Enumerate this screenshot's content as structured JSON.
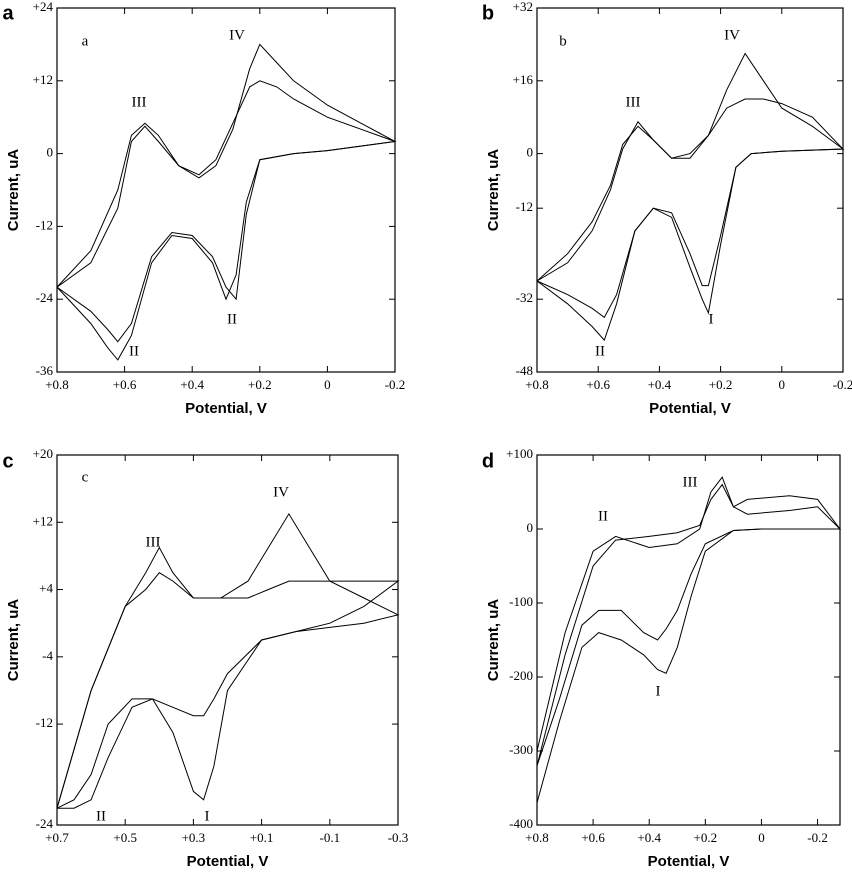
{
  "chart_data": [
    {
      "type": "line",
      "panel_label": "a",
      "inner_label": "a",
      "xlabel": "Potential, V",
      "ylabel": "Current, uA",
      "xlim": [
        0.8,
        -0.2
      ],
      "xticks": [
        {
          "value": 0.8,
          "label": "+0.8"
        },
        {
          "value": 0.6,
          "label": "+0.6"
        },
        {
          "value": 0.4,
          "label": "+0.4"
        },
        {
          "value": 0.2,
          "label": "+0.2"
        },
        0,
        -0.2
      ],
      "ylim": [
        -36,
        24
      ],
      "yticks": [
        -36,
        -24,
        -12,
        0,
        {
          "value": 12,
          "label": "+12"
        },
        {
          "value": 24,
          "label": "+24"
        }
      ],
      "annotations": [
        "III",
        "IV",
        "II",
        "II"
      ],
      "series": [
        {
          "color": "#000000",
          "x": [
            0.8,
            0.7,
            0.65,
            0.62,
            0.58,
            0.52,
            0.46,
            0.4,
            0.34,
            0.3,
            0.27,
            0.24,
            0.2,
            0.1,
            0,
            -0.2,
            -0.1,
            0,
            0.1,
            0.15,
            0.2,
            0.23,
            0.28,
            0.33,
            0.38,
            0.44,
            0.5,
            0.54,
            0.58,
            0.62,
            0.7,
            0.8
          ],
          "values": [
            -22,
            -28,
            -32,
            -34,
            -30,
            -18,
            -13.5,
            -14,
            -18,
            -24,
            -20,
            -8,
            -1,
            0,
            0.5,
            2,
            5,
            8,
            12,
            15,
            18,
            14,
            4,
            -2,
            -4,
            -2,
            3,
            5,
            3,
            -6,
            -16,
            -22
          ]
        },
        {
          "color": "#000000",
          "x": [
            0.8,
            0.7,
            0.65,
            0.62,
            0.58,
            0.52,
            0.46,
            0.4,
            0.34,
            0.3,
            0.27,
            0.24,
            0.2,
            0.1,
            0,
            -0.2,
            -0.1,
            0,
            0.1,
            0.15,
            0.2,
            0.23,
            0.28,
            0.33,
            0.38,
            0.44,
            0.5,
            0.54,
            0.58,
            0.62,
            0.7,
            0.8
          ],
          "values": [
            -22,
            -26,
            -29,
            -31,
            -28,
            -17,
            -13,
            -13.5,
            -17,
            -22,
            -24,
            -10,
            -1,
            0,
            0.5,
            2,
            4,
            6,
            9,
            11,
            12,
            11,
            5,
            -1,
            -3.5,
            -2,
            2,
            4.5,
            2,
            -9,
            -18,
            -22
          ]
        }
      ]
    },
    {
      "type": "line",
      "panel_label": "b",
      "inner_label": "b",
      "xlabel": "Potential, V",
      "ylabel": "Current, uA",
      "xlim": [
        0.8,
        -0.2
      ],
      "xticks": [
        {
          "value": 0.8,
          "label": "+0.8"
        },
        {
          "value": 0.6,
          "label": "+0.6"
        },
        {
          "value": 0.4,
          "label": "+0.4"
        },
        {
          "value": 0.2,
          "label": "+0.2"
        },
        0,
        -0.2
      ],
      "ylim": [
        -48,
        32
      ],
      "yticks": [
        -48,
        -32,
        -12,
        0,
        {
          "value": 16,
          "label": "+16"
        },
        {
          "value": 32,
          "label": "+32"
        }
      ],
      "annotations": [
        "III",
        "IV",
        "I",
        "II"
      ],
      "series": [
        {
          "color": "#000000",
          "x": [
            0.8,
            0.7,
            0.62,
            0.58,
            0.54,
            0.48,
            0.42,
            0.36,
            0.3,
            0.26,
            0.24,
            0.2,
            0.15,
            0.1,
            0,
            -0.2,
            -0.1,
            0,
            0.06,
            0.12,
            0.18,
            0.24,
            0.3,
            0.36,
            0.42,
            0.47,
            0.52,
            0.56,
            0.62,
            0.7,
            0.8
          ],
          "values": [
            -28,
            -33,
            -38,
            -41,
            -33,
            -17,
            -12,
            -14,
            -25,
            -32,
            -35,
            -20,
            -3,
            0,
            0.5,
            1,
            6,
            10,
            16,
            22,
            14,
            4,
            -1,
            -1,
            3,
            7,
            1,
            -8,
            -17,
            -24,
            -28
          ]
        },
        {
          "color": "#000000",
          "x": [
            0.8,
            0.7,
            0.62,
            0.58,
            0.54,
            0.48,
            0.42,
            0.36,
            0.3,
            0.26,
            0.24,
            0.2,
            0.15,
            0.1,
            0,
            -0.2,
            -0.1,
            0,
            0.06,
            0.12,
            0.18,
            0.24,
            0.3,
            0.36,
            0.42,
            0.47,
            0.52,
            0.56,
            0.62,
            0.7,
            0.8
          ],
          "values": [
            -28,
            -31,
            -34,
            -36,
            -31,
            -17,
            -12,
            -13,
            -22,
            -29,
            -29,
            -18,
            -3,
            0,
            0.5,
            1,
            8,
            11,
            12,
            12,
            10,
            4,
            0,
            -1,
            3,
            6,
            2,
            -7,
            -15,
            -22,
            -28
          ]
        }
      ]
    },
    {
      "type": "line",
      "panel_label": "c",
      "inner_label": "c",
      "xlabel": "Potential, V",
      "ylabel": "Current, uA",
      "xlim": [
        0.7,
        -0.3
      ],
      "xticks": [
        {
          "value": 0.7,
          "label": "+0.7"
        },
        {
          "value": 0.5,
          "label": "+0.5"
        },
        {
          "value": 0.3,
          "label": "+0.3"
        },
        {
          "value": 0.1,
          "label": "+0.1"
        },
        -0.1,
        -0.3
      ],
      "ylim": [
        -24,
        20
      ],
      "yticks": [
        -24,
        -12,
        -4,
        {
          "value": 4,
          "label": "+4"
        },
        {
          "value": 12,
          "label": "+12"
        },
        {
          "value": 20,
          "label": "+20"
        }
      ],
      "annotations": [
        "III",
        "IV",
        "II",
        "I"
      ],
      "series": [
        {
          "color": "#000000",
          "x": [
            0.7,
            0.65,
            0.6,
            0.55,
            0.48,
            0.42,
            0.36,
            0.3,
            0.27,
            0.24,
            0.2,
            0.1,
            0,
            -0.1,
            -0.2,
            -0.3,
            -0.2,
            -0.1,
            -0.04,
            0.02,
            0.08,
            0.14,
            0.22,
            0.3,
            0.36,
            0.4,
            0.44,
            0.5,
            0.6,
            0.7
          ],
          "values": [
            -22,
            -21,
            -18,
            -12,
            -9,
            -9,
            -13,
            -20,
            -21,
            -17,
            -8,
            -2,
            -1,
            -0.5,
            0,
            1,
            3,
            5,
            9,
            13,
            9,
            5,
            3,
            3,
            6,
            9,
            6,
            2,
            -8,
            -22
          ]
        },
        {
          "color": "#000000",
          "x": [
            0.7,
            0.65,
            0.6,
            0.55,
            0.48,
            0.42,
            0.36,
            0.3,
            0.27,
            0.24,
            0.2,
            0.1,
            0,
            -0.1,
            -0.2,
            -0.3,
            -0.2,
            -0.1,
            -0.04,
            0.02,
            0.08,
            0.14,
            0.22,
            0.3,
            0.36,
            0.4,
            0.44,
            0.5,
            0.6,
            0.7
          ],
          "values": [
            -22,
            -22,
            -21,
            -16,
            -10,
            -9,
            -10,
            -11,
            -11,
            -9,
            -6,
            -2,
            -1,
            0,
            2,
            5,
            5,
            5,
            5,
            5,
            4,
            3,
            3,
            3,
            5,
            6,
            4,
            2,
            -8,
            -22
          ]
        }
      ]
    },
    {
      "type": "line",
      "panel_label": "d",
      "xlabel": "Potential, V",
      "ylabel": "Current, uA",
      "xlim": [
        0.8,
        -0.28
      ],
      "xticks": [
        {
          "value": 0.8,
          "label": "+0.8"
        },
        {
          "value": 0.6,
          "label": "+0.6"
        },
        {
          "value": 0.4,
          "label": "+0.4"
        },
        {
          "value": 0.2,
          "label": "+0.2"
        },
        0,
        -0.2
      ],
      "ylim": [
        -400,
        100
      ],
      "yticks": [
        -400,
        -300,
        -200,
        -100,
        0,
        {
          "value": 100,
          "label": "+100"
        }
      ],
      "annotations": [
        "II",
        "III",
        "I"
      ],
      "series": [
        {
          "color": "#000000",
          "x": [
            0.8,
            0.72,
            0.64,
            0.58,
            0.5,
            0.42,
            0.37,
            0.34,
            0.3,
            0.25,
            0.2,
            0.1,
            0,
            -0.28,
            -0.2,
            -0.1,
            0.05,
            0.1,
            0.14,
            0.18,
            0.22,
            0.3,
            0.4,
            0.52,
            0.6,
            0.7,
            0.8
          ],
          "values": [
            -370,
            -260,
            -160,
            -140,
            -150,
            -170,
            -190,
            -195,
            -160,
            -90,
            -30,
            -2,
            0,
            0,
            40,
            45,
            40,
            30,
            70,
            50,
            0,
            -20,
            -25,
            -10,
            -30,
            -140,
            -300
          ]
        },
        {
          "color": "#000000",
          "x": [
            0.8,
            0.72,
            0.64,
            0.58,
            0.5,
            0.42,
            0.37,
            0.34,
            0.3,
            0.25,
            0.2,
            0.1,
            0,
            -0.28,
            -0.2,
            -0.1,
            0.05,
            0.1,
            0.14,
            0.18,
            0.22,
            0.3,
            0.4,
            0.52,
            0.6,
            0.7,
            0.8
          ],
          "values": [
            -320,
            -230,
            -130,
            -110,
            -110,
            -140,
            -150,
            -135,
            -110,
            -60,
            -20,
            -2,
            0,
            0,
            30,
            25,
            20,
            30,
            60,
            40,
            5,
            -5,
            -10,
            -15,
            -50,
            -170,
            -320
          ]
        }
      ]
    }
  ]
}
